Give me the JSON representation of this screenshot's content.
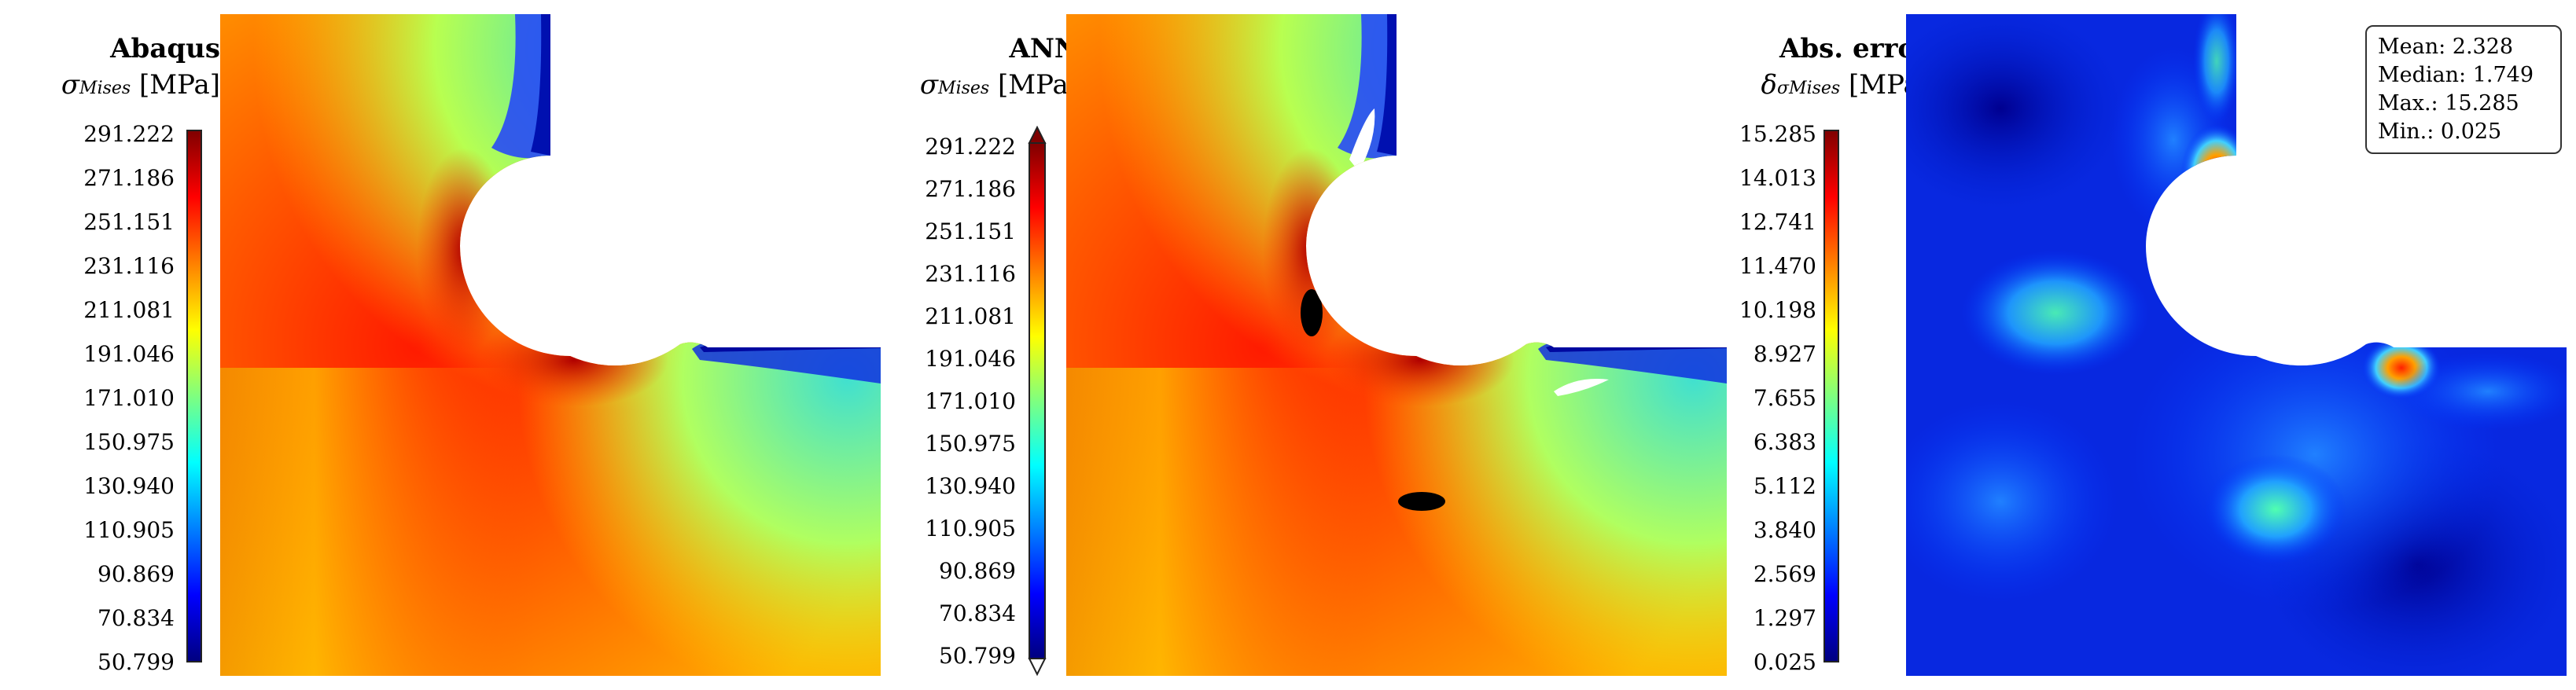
{
  "panels": [
    {
      "title": "Abaqus",
      "symbol": "σ",
      "subscript": "Mises",
      "unit": "[MPa]",
      "ticks": [
        "291.222",
        "271.186",
        "251.151",
        "231.116",
        "211.081",
        "191.046",
        "171.010",
        "150.975",
        "130.940",
        "110.905",
        "90.869",
        "70.834",
        "50.799"
      ]
    },
    {
      "title": "ANN",
      "symbol": "σ",
      "subscript": "Mises",
      "unit": "[MPa]",
      "ticks": [
        "291.222",
        "271.186",
        "251.151",
        "231.116",
        "211.081",
        "191.046",
        "171.010",
        "150.975",
        "130.940",
        "110.905",
        "90.869",
        "70.834",
        "50.799"
      ]
    },
    {
      "title": "Abs. error",
      "symbol": "δ",
      "subscript": "σMises",
      "unit": "[MPa]",
      "ticks": [
        "15.285",
        "14.013",
        "12.741",
        "11.470",
        "10.198",
        "8.927",
        "7.655",
        "6.383",
        "5.112",
        "3.840",
        "2.569",
        "1.297",
        "0.025"
      ]
    }
  ],
  "stats": {
    "mean": "Mean: 2.328",
    "median": "Median: 1.749",
    "max": "Max.: 15.285",
    "min": "Min.: 0.025"
  },
  "colormap": "jet",
  "colors": {
    "jet_top": "#7f0000",
    "jet_red": "#ff0000",
    "jet_yellow": "#ffff00",
    "jet_cyan": "#00ffff",
    "jet_blue": "#0000ff",
    "jet_bottom": "#00007f"
  }
}
